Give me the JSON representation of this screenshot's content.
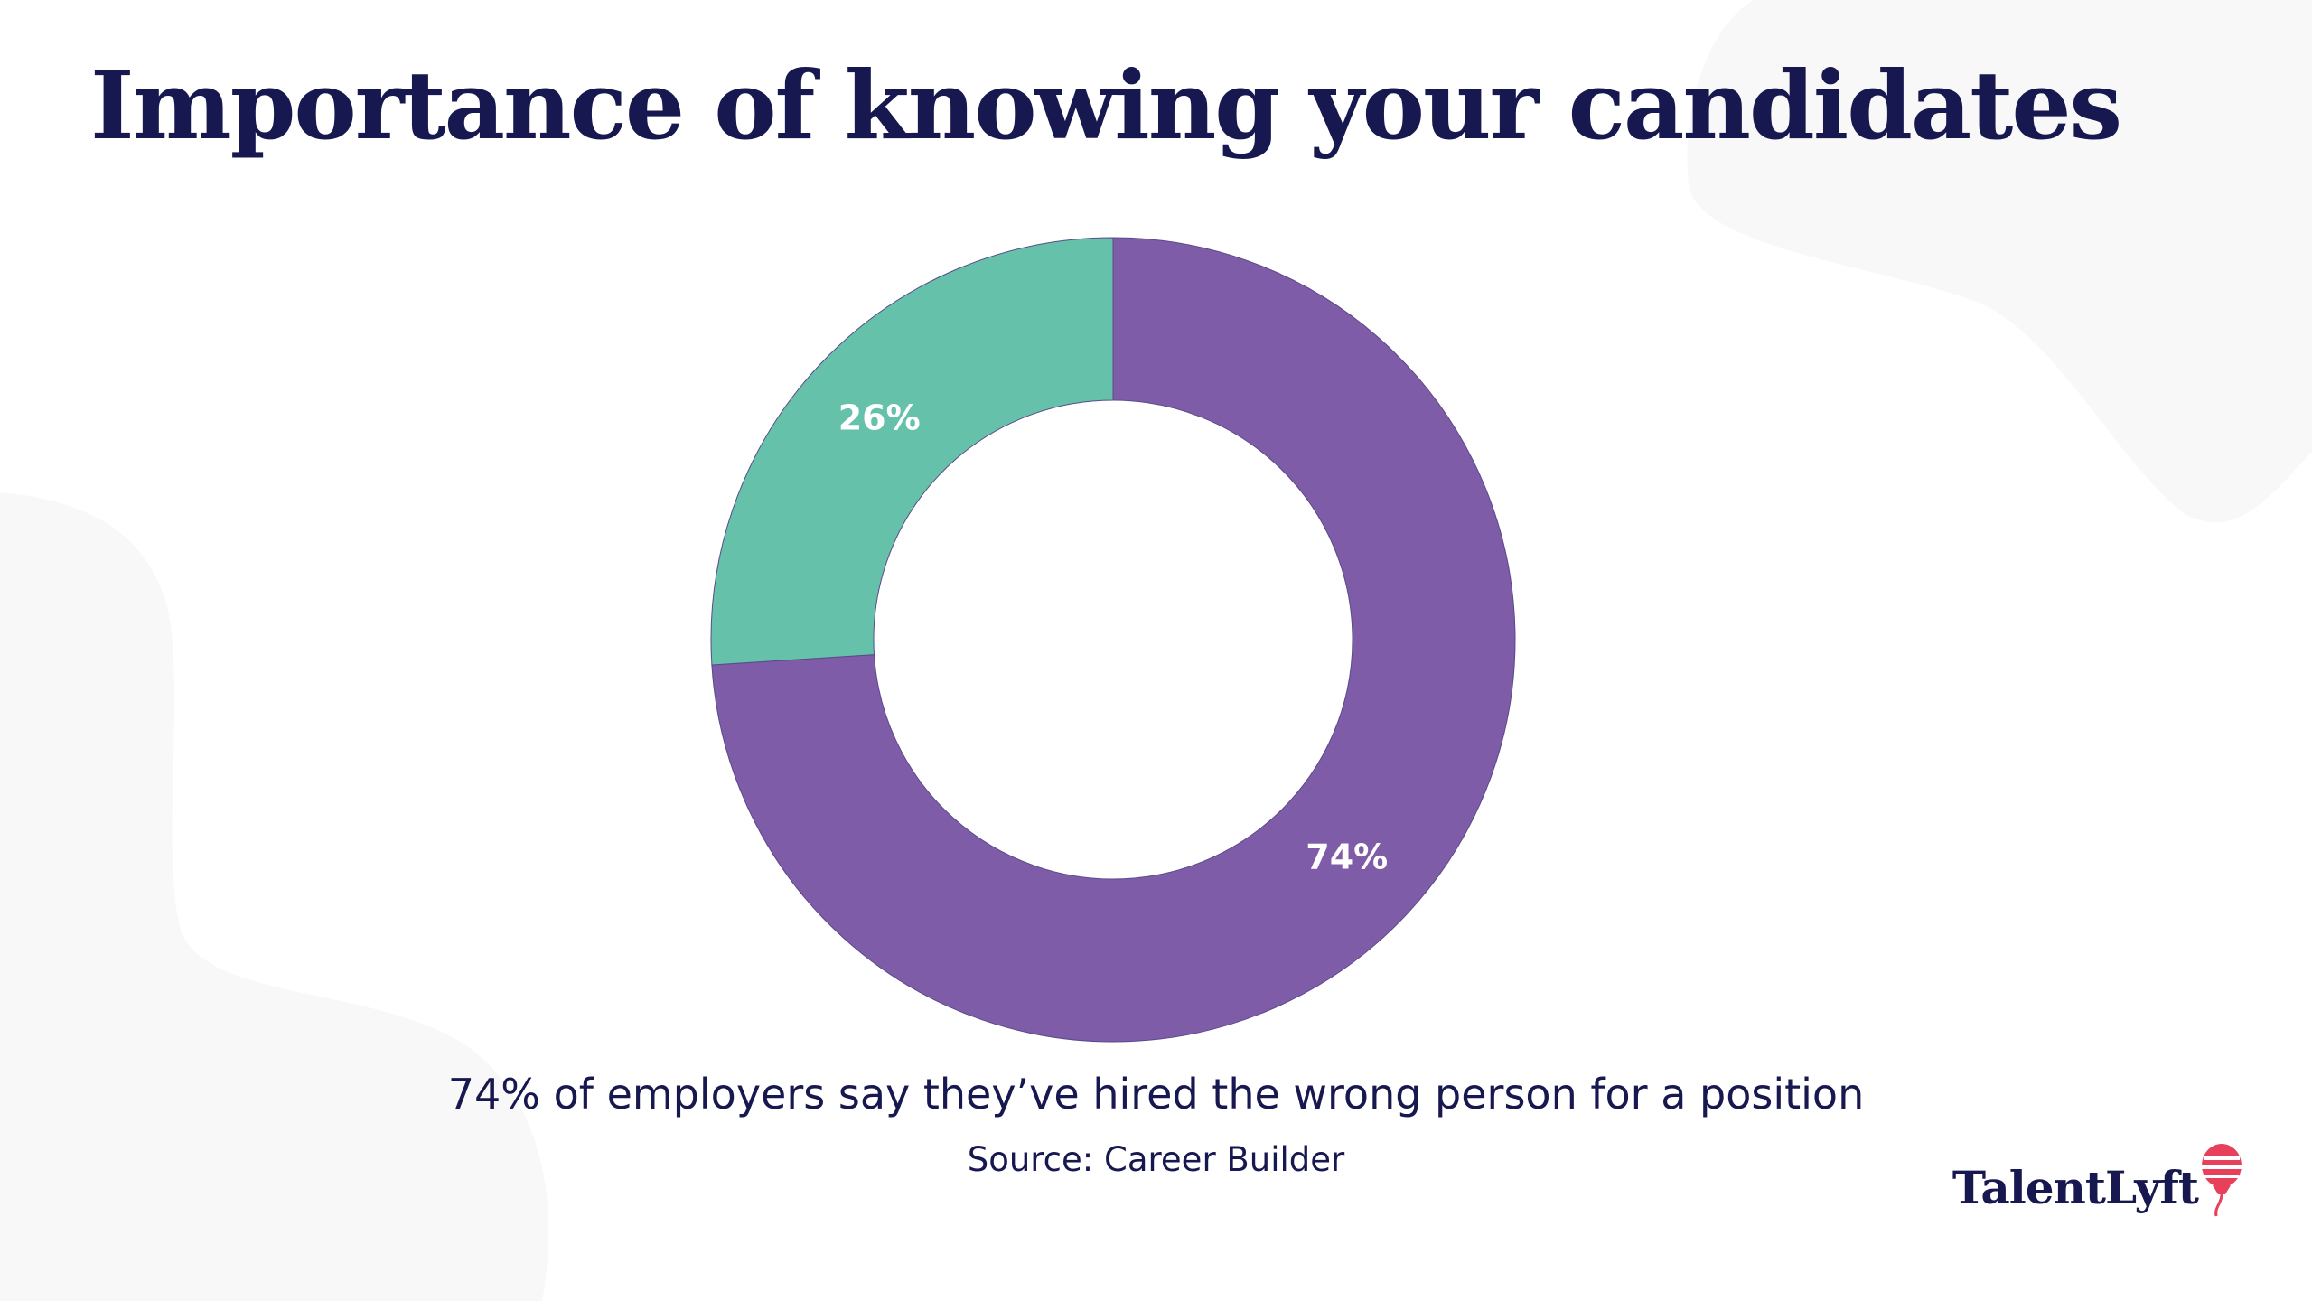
{
  "title": "Importance of knowing your candidates",
  "caption": "74% of employers say they’ve hired the wrong person for a position",
  "source": "Source: Career Builder",
  "logo": {
    "text": "TalentLyft",
    "icon": "hot-air-balloon-icon",
    "text_color": "#17184f",
    "icon_color": "#e8405a"
  },
  "colors": {
    "title": "#17184f",
    "background_shape": "#f7f7f7"
  },
  "chart_data": {
    "type": "pie",
    "donut": true,
    "title": "",
    "start": "12 o'clock, clockwise",
    "slices": [
      {
        "name": "",
        "value": 74,
        "label": "74%",
        "color": "#7e5ca7"
      },
      {
        "name": "",
        "value": 26,
        "label": "26%",
        "color": "#66c1ab"
      }
    ],
    "legend": "none"
  }
}
